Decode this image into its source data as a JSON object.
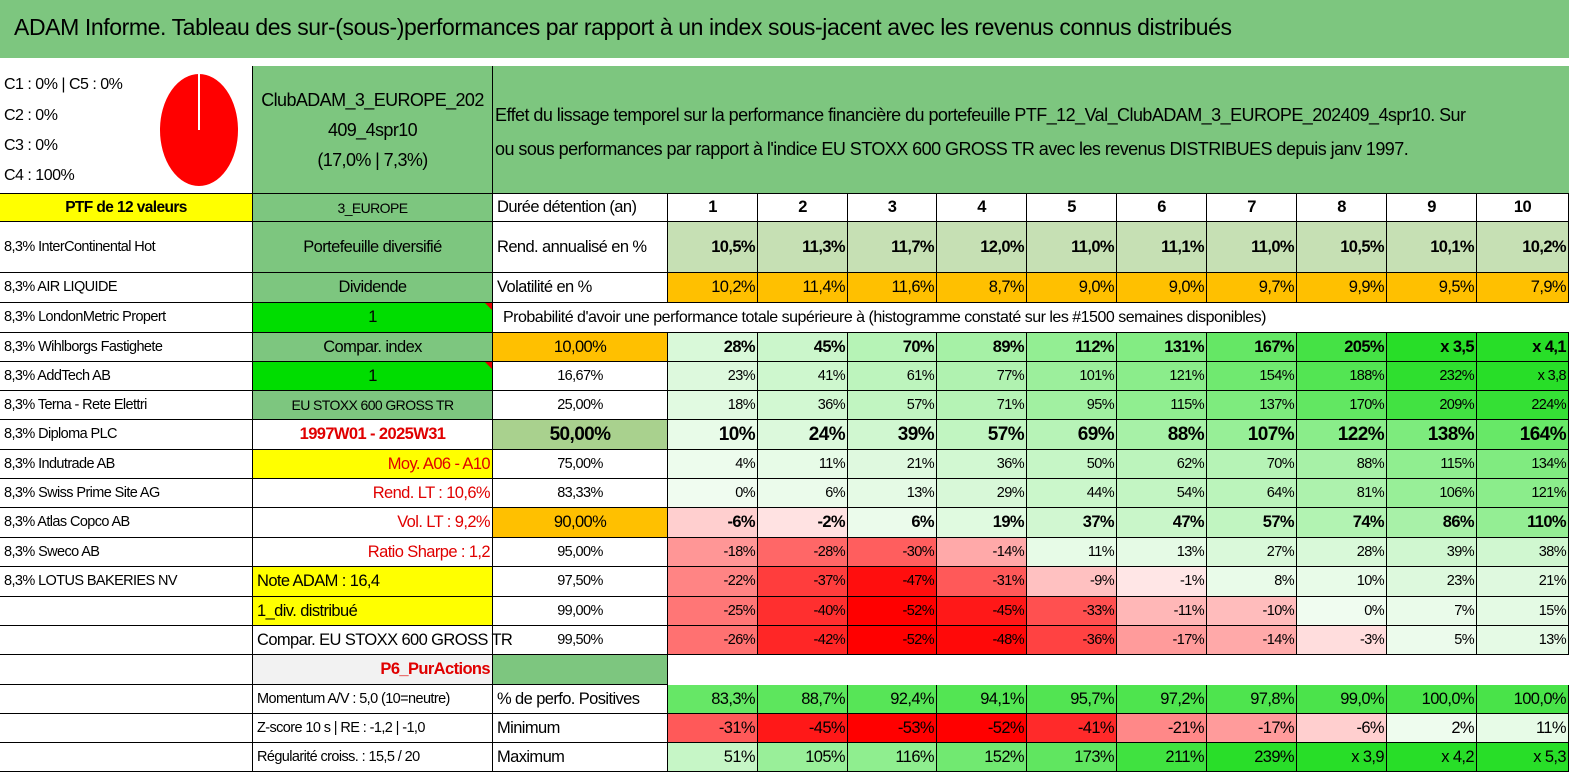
{
  "title": "ADAM Informe. Tableau des sur-(sous-)performances par rapport à un index sous-jacent avec les revenus connus distribués",
  "legend": {
    "lines": [
      "C1 : 0% | C5 : 0%",
      "C2 : 0%",
      "C3 : 0%",
      "C4 : 100%"
    ],
    "pie_color": "#ff0000"
  },
  "club": {
    "line1": "ClubADAM_3_EUROPE_202",
    "line2": "409_4spr10",
    "line3": "(17,0% | 7,3%)"
  },
  "description": {
    "line1": "Effet du lissage temporel sur la performance financière du portefeuille PTF_12_Val_ClubADAM_3_EUROPE_202409_4spr10. Sur",
    "line2": "ou sous performances par rapport à l'indice EU STOXX 600 GROSS TR avec les revenus DISTRIBUES depuis janv 1997."
  },
  "ptf_header": "PTF de 12 valeurs",
  "holdings": [
    "8,3% InterContinental Hot",
    "8,3% AIR LIQUIDE",
    "8,3% LondonMetric Propert",
    "8,3% Wihlborgs Fastighete",
    "8,3% AddTech AB",
    "8,3% Terna - Rete Elettri",
    "8,3% Diploma PLC",
    "8,3% Indutrade AB",
    "8,3% Swiss Prime Site AG",
    "8,3% Atlas Copco AB",
    "8,3% Sweco AB",
    "8,3% LOTUS BAKERIES NV"
  ],
  "info_column": [
    "3_EUROPE",
    "Portefeuille diversifié",
    "Dividende",
    "1",
    "Compar. index",
    "1",
    "EU STOXX 600 GROSS TR",
    "1997W01 - 2025W31",
    "Moy. A06 - A10",
    "Rend. LT : 10,6%",
    "Vol. LT : 9,2%",
    "Ratio Sharpe : 1,2",
    "Note ADAM : 16,4",
    "1_div. distribué",
    "Compar. EU STOXX 600 GROSS TR",
    "P6_PurActions",
    "Momentum A/V : 5,0 (10=neutre)",
    "Z-score 10 s | RE : -1,2 | -1,0",
    "Régularité croiss. : 15,5 / 20"
  ],
  "table": {
    "duration_label": "Durée détention (an)",
    "years": [
      "1",
      "2",
      "3",
      "4",
      "5",
      "6",
      "7",
      "8",
      "9",
      "10"
    ],
    "rend_label": "Rend. annualisé en %",
    "rend": [
      "10,5%",
      "11,3%",
      "11,7%",
      "12,0%",
      "11,0%",
      "11,1%",
      "11,0%",
      "10,5%",
      "10,1%",
      "10,2%"
    ],
    "vol_label": "Volatilité en %",
    "vol": [
      "10,2%",
      "11,4%",
      "11,6%",
      "8,7%",
      "9,0%",
      "9,0%",
      "9,7%",
      "9,9%",
      "9,5%",
      "7,9%"
    ],
    "prob_header": "Probabilité d'avoir une performance totale supérieure à (histogramme constaté sur les #1500 semaines disponibles)",
    "prob_rows": [
      {
        "label": "10,00%",
        "values": [
          "28%",
          "45%",
          "70%",
          "89%",
          "112%",
          "131%",
          "167%",
          "205%",
          "x 3,5",
          "x 4,1"
        ]
      },
      {
        "label": "16,67%",
        "values": [
          "23%",
          "41%",
          "61%",
          "77%",
          "101%",
          "121%",
          "154%",
          "188%",
          "232%",
          "x 3,8"
        ]
      },
      {
        "label": "25,00%",
        "values": [
          "18%",
          "36%",
          "57%",
          "71%",
          "95%",
          "115%",
          "137%",
          "170%",
          "209%",
          "224%"
        ]
      },
      {
        "label": "50,00%",
        "values": [
          "10%",
          "24%",
          "39%",
          "57%",
          "69%",
          "88%",
          "107%",
          "122%",
          "138%",
          "164%"
        ]
      },
      {
        "label": "75,00%",
        "values": [
          "4%",
          "11%",
          "21%",
          "36%",
          "50%",
          "62%",
          "70%",
          "88%",
          "115%",
          "134%"
        ]
      },
      {
        "label": "83,33%",
        "values": [
          "0%",
          "6%",
          "13%",
          "29%",
          "44%",
          "54%",
          "64%",
          "81%",
          "106%",
          "121%"
        ]
      },
      {
        "label": "90,00%",
        "values": [
          "-6%",
          "-2%",
          "6%",
          "19%",
          "37%",
          "47%",
          "57%",
          "74%",
          "86%",
          "110%"
        ]
      },
      {
        "label": "95,00%",
        "values": [
          "-18%",
          "-28%",
          "-30%",
          "-14%",
          "11%",
          "13%",
          "27%",
          "28%",
          "39%",
          "38%"
        ]
      },
      {
        "label": "97,50%",
        "values": [
          "-22%",
          "-37%",
          "-47%",
          "-31%",
          "-9%",
          "-1%",
          "8%",
          "10%",
          "23%",
          "21%"
        ]
      },
      {
        "label": "99,00%",
        "values": [
          "-25%",
          "-40%",
          "-52%",
          "-45%",
          "-33%",
          "-11%",
          "-10%",
          "0%",
          "7%",
          "15%"
        ]
      },
      {
        "label": "99,50%",
        "values": [
          "-26%",
          "-42%",
          "-52%",
          "-48%",
          "-36%",
          "-17%",
          "-14%",
          "-3%",
          "5%",
          "13%"
        ]
      }
    ],
    "pos_label": "% de perfo. Positives",
    "pos": [
      "83,3%",
      "88,7%",
      "92,4%",
      "94,1%",
      "95,7%",
      "97,2%",
      "97,8%",
      "99,0%",
      "100,0%",
      "100,0%"
    ],
    "min_label": "Minimum",
    "min": [
      "-31%",
      "-45%",
      "-53%",
      "-52%",
      "-41%",
      "-21%",
      "-17%",
      "-6%",
      "2%",
      "11%"
    ],
    "max_label": "Maximum",
    "max": [
      "51%",
      "105%",
      "116%",
      "152%",
      "173%",
      "211%",
      "239%",
      "x 3,9",
      "x 4,2",
      "x 5,3"
    ]
  },
  "colors": {
    "header_green": "#7dc67f",
    "yellow": "#ffff00",
    "bright_green": "#00dd00",
    "orange": "#ffc000",
    "neutral_grey": "#f2f2f2",
    "negative_red": "#ff0000",
    "positive_green": "#33dd33"
  }
}
